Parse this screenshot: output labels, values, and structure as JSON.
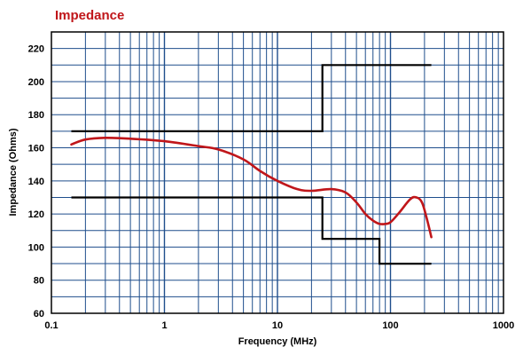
{
  "chart_data": {
    "type": "line",
    "title": "Impedance",
    "xlabel": "Frequency (MHz)",
    "ylabel": "Impedance (Ohms)",
    "x_scale": "log",
    "xlim": [
      0.1,
      1000
    ],
    "ylim": [
      60,
      230
    ],
    "x_tick_labels": [
      "0.1",
      "1",
      "10",
      "100",
      "1000"
    ],
    "y_tick_labels": [
      "60",
      "80",
      "100",
      "120",
      "140",
      "160",
      "180",
      "200",
      "220"
    ],
    "grid": true,
    "legend": "none",
    "colors": {
      "title": "#c0161a",
      "grid": "#1f4e8c",
      "measured": "#c0161a",
      "limits": "#000000",
      "frame": "#000000"
    },
    "series": [
      {
        "role": "measured",
        "x": [
          0.15,
          0.2,
          0.3,
          0.5,
          1,
          2,
          3,
          5,
          7,
          10,
          15,
          20,
          30,
          40,
          50,
          60,
          70,
          80,
          90,
          100,
          120,
          150,
          170,
          190,
          210,
          230
        ],
        "y": [
          162,
          165,
          166,
          165.5,
          164,
          161,
          159,
          153,
          146,
          140,
          135,
          134,
          135,
          133,
          127,
          120,
          116,
          114,
          114,
          115,
          121,
          129,
          130,
          127,
          117,
          106
        ]
      },
      {
        "role": "upper-limit",
        "x": [
          0.15,
          25,
          25,
          230
        ],
        "y": [
          170,
          170,
          210,
          210
        ]
      },
      {
        "role": "lower-limit",
        "x": [
          0.15,
          25,
          25,
          80,
          80,
          230
        ],
        "y": [
          130,
          130,
          105,
          105,
          90,
          90
        ]
      }
    ]
  }
}
